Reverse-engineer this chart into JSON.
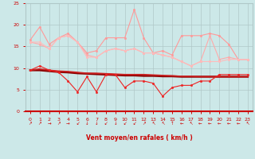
{
  "background_color": "#cce8e8",
  "grid_color": "#b0c8c8",
  "xlabel": "Vent moyen/en rafales ( km/h )",
  "xlabel_color": "#cc0000",
  "tick_color": "#cc0000",
  "xlim": [
    -0.5,
    23.5
  ],
  "ylim": [
    0,
    25
  ],
  "yticks": [
    0,
    5,
    10,
    15,
    20,
    25
  ],
  "xticks": [
    0,
    1,
    2,
    3,
    4,
    5,
    6,
    7,
    8,
    9,
    10,
    11,
    12,
    13,
    14,
    15,
    16,
    17,
    18,
    19,
    20,
    21,
    22,
    23
  ],
  "series": [
    {
      "name": "pink_high_spike",
      "color": "#ff9999",
      "lw": 0.8,
      "marker": "o",
      "ms": 1.8,
      "y": [
        16.5,
        19.5,
        15.5,
        17.0,
        18.0,
        16.0,
        13.5,
        14.0,
        17.0,
        17.0,
        17.0,
        23.5,
        17.0,
        13.5,
        14.0,
        13.0,
        17.5,
        17.5,
        17.5,
        18.0,
        17.5,
        15.5,
        12.0,
        12.0
      ]
    },
    {
      "name": "pink_lower",
      "color": "#ffaaaa",
      "lw": 0.8,
      "marker": "o",
      "ms": 1.8,
      "y": [
        16.0,
        15.5,
        14.5,
        17.0,
        17.5,
        16.0,
        13.0,
        12.5,
        14.0,
        14.5,
        14.0,
        14.5,
        13.5,
        13.5,
        13.0,
        12.5,
        11.5,
        10.5,
        11.5,
        17.5,
        12.0,
        12.5,
        12.0,
        12.0
      ]
    },
    {
      "name": "pink_mid",
      "color": "#ffbbbb",
      "lw": 0.8,
      "marker": "o",
      "ms": 1.8,
      "y": [
        16.0,
        16.0,
        14.5,
        17.0,
        17.5,
        16.0,
        12.5,
        12.5,
        14.0,
        14.5,
        14.0,
        14.5,
        13.5,
        13.5,
        13.0,
        12.5,
        11.5,
        10.5,
        11.5,
        11.5,
        11.5,
        12.0,
        12.0,
        12.0
      ]
    },
    {
      "name": "dark_red_straight",
      "color": "#880000",
      "lw": 1.8,
      "marker": null,
      "ms": 0,
      "y": [
        9.5,
        9.5,
        9.3,
        9.1,
        9.0,
        8.8,
        8.7,
        8.6,
        8.5,
        8.4,
        8.3,
        8.3,
        8.2,
        8.2,
        8.1,
        8.1,
        8.0,
        8.0,
        8.0,
        8.0,
        8.0,
        8.0,
        8.0,
        8.0
      ]
    },
    {
      "name": "red_mid_straight",
      "color": "#cc2222",
      "lw": 1.2,
      "marker": null,
      "ms": 0,
      "y": [
        9.5,
        9.8,
        9.5,
        9.3,
        9.2,
        9.0,
        8.8,
        8.8,
        8.7,
        8.6,
        8.5,
        8.5,
        8.5,
        8.4,
        8.3,
        8.2,
        8.1,
        8.1,
        8.0,
        8.0,
        8.0,
        8.0,
        8.0,
        8.0
      ]
    },
    {
      "name": "red_with_markers",
      "color": "#ee2222",
      "lw": 0.8,
      "marker": "o",
      "ms": 1.8,
      "y": [
        9.5,
        10.5,
        9.5,
        9.0,
        7.0,
        4.5,
        8.0,
        4.5,
        8.5,
        8.5,
        5.5,
        7.0,
        7.0,
        6.5,
        3.5,
        5.5,
        6.0,
        6.0,
        7.0,
        7.0,
        8.5,
        8.5,
        8.5,
        8.5
      ]
    }
  ],
  "wind_arrows": [
    "↗",
    "↗",
    "→",
    "↗",
    "→",
    "↙",
    "↓",
    "↓",
    "↙",
    "↓",
    "↙",
    "↙",
    "↗",
    "↖",
    "↖",
    "↑",
    "←",
    "↖",
    "←",
    "←",
    "←",
    "←",
    "←",
    "↖"
  ]
}
